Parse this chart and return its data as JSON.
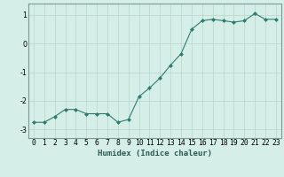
{
  "x": [
    0,
    1,
    2,
    3,
    4,
    5,
    6,
    7,
    8,
    9,
    10,
    11,
    12,
    13,
    14,
    15,
    16,
    17,
    18,
    19,
    20,
    21,
    22,
    23
  ],
  "y": [
    -2.75,
    -2.75,
    -2.55,
    -2.3,
    -2.3,
    -2.45,
    -2.45,
    -2.45,
    -2.75,
    -2.65,
    -1.85,
    -1.55,
    -1.2,
    -0.75,
    -0.35,
    0.5,
    0.8,
    0.85,
    0.8,
    0.75,
    0.8,
    1.05,
    0.85,
    0.85
  ],
  "line_color": "#2d7d6e",
  "marker": "D",
  "marker_size": 2.0,
  "bg_color": "#d6eee8",
  "grid_color": "#b8d4ce",
  "xlabel": "Humidex (Indice chaleur)",
  "ylim": [
    -3.3,
    1.4
  ],
  "xlim": [
    -0.5,
    23.5
  ],
  "yticks": [
    -3,
    -2,
    -1,
    0,
    1
  ],
  "xtick_labels": [
    "0",
    "1",
    "2",
    "3",
    "4",
    "5",
    "6",
    "7",
    "8",
    "9",
    "10",
    "11",
    "12",
    "13",
    "14",
    "15",
    "16",
    "17",
    "18",
    "19",
    "20",
    "21",
    "22",
    "23"
  ],
  "label_fontsize": 6.5,
  "tick_fontsize": 5.8,
  "spine_color": "#7a9a94"
}
